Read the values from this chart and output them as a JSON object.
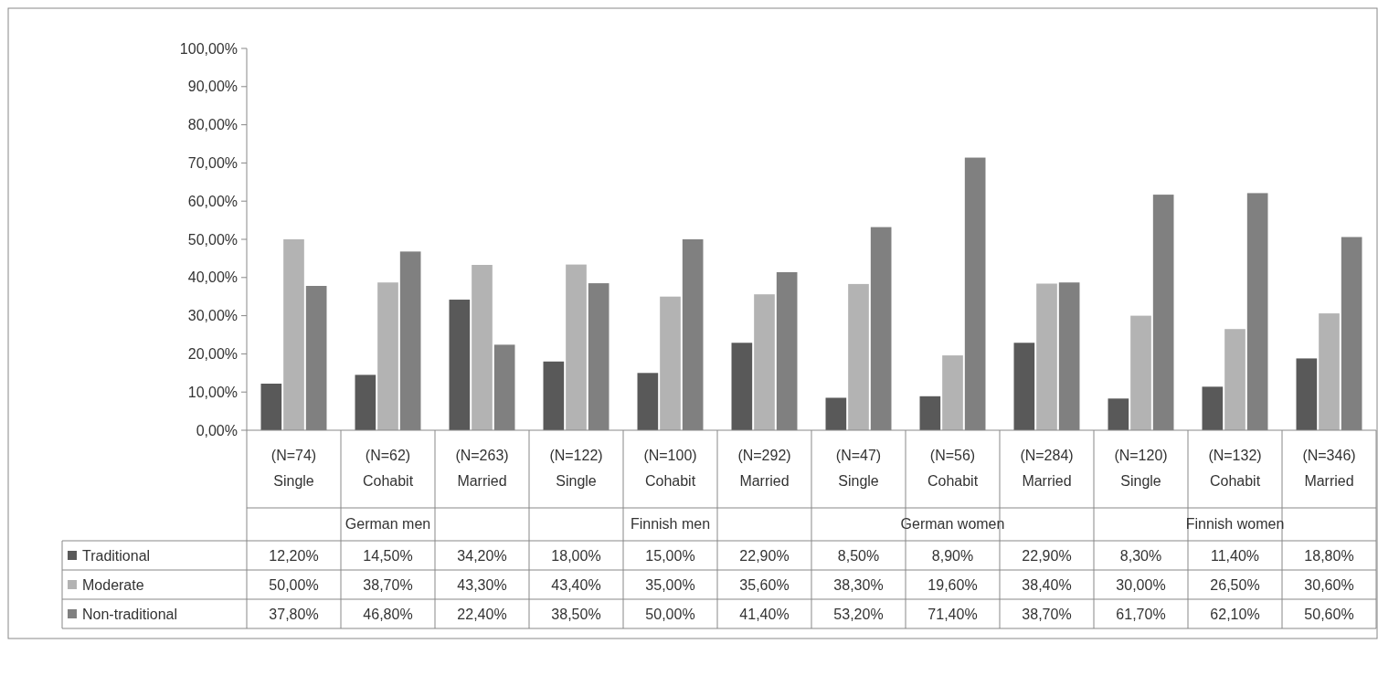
{
  "chart_data": {
    "type": "bar",
    "categories": [
      "(N=74)\nSingle",
      "(N=62)\nCohabit",
      "(N=263)\nMarried",
      "(N=122)\nSingle",
      "(N=100)\nCohabit",
      "(N=292)\nMarried",
      "(N=47)\nSingle",
      "(N=56)\nCohabit",
      "(N=284)\nMarried",
      "(N=120)\nSingle",
      "(N=132)\nCohabit",
      "(N=346)\nMarried"
    ],
    "annotations": [
      "German men",
      "Finnish men",
      "German women",
      "Finnish women"
    ],
    "series": [
      {
        "name": "Traditional",
        "color": "#595959",
        "values": [
          12.2,
          14.5,
          34.2,
          18.0,
          15.0,
          22.9,
          8.5,
          8.9,
          22.9,
          8.3,
          11.4,
          18.8
        ],
        "value_labels": [
          "12,20%",
          "14,50%",
          "34,20%",
          "18,00%",
          "15,00%",
          "22,90%",
          "8,50%",
          "8,90%",
          "22,90%",
          "8,30%",
          "11,40%",
          "18,80%"
        ]
      },
      {
        "name": "Moderate",
        "color": "#b3b3b3",
        "values": [
          50.0,
          38.7,
          43.3,
          43.4,
          35.0,
          35.6,
          38.3,
          19.6,
          38.4,
          30.0,
          26.5,
          30.6
        ],
        "value_labels": [
          "50,00%",
          "38,70%",
          "43,30%",
          "43,40%",
          "35,00%",
          "35,60%",
          "38,30%",
          "19,60%",
          "38,40%",
          "30,00%",
          "26,50%",
          "30,60%"
        ]
      },
      {
        "name": "Non-traditional",
        "color": "#808080",
        "values": [
          37.8,
          46.8,
          22.4,
          38.5,
          50.0,
          41.4,
          53.2,
          71.4,
          38.7,
          61.7,
          62.1,
          50.6
        ],
        "value_labels": [
          "37,80%",
          "46,80%",
          "22,40%",
          "38,50%",
          "50,00%",
          "41,40%",
          "53,20%",
          "71,40%",
          "38,70%",
          "61,70%",
          "62,10%",
          "50,60%"
        ]
      }
    ],
    "ylim": [
      0,
      100
    ],
    "yticks": [
      {
        "value": 0,
        "label": "0,00%"
      },
      {
        "value": 10,
        "label": "10,00%"
      },
      {
        "value": 20,
        "label": "20,00%"
      },
      {
        "value": 30,
        "label": "30,00%"
      },
      {
        "value": 40,
        "label": "40,00%"
      },
      {
        "value": 50,
        "label": "50,00%"
      },
      {
        "value": 60,
        "label": "60,00%"
      },
      {
        "value": 70,
        "label": "70,00%"
      },
      {
        "value": 80,
        "label": "80,00%"
      },
      {
        "value": 90,
        "label": "90,00%"
      },
      {
        "value": 100,
        "label": "100,00%"
      }
    ],
    "legend": "bottom left"
  }
}
